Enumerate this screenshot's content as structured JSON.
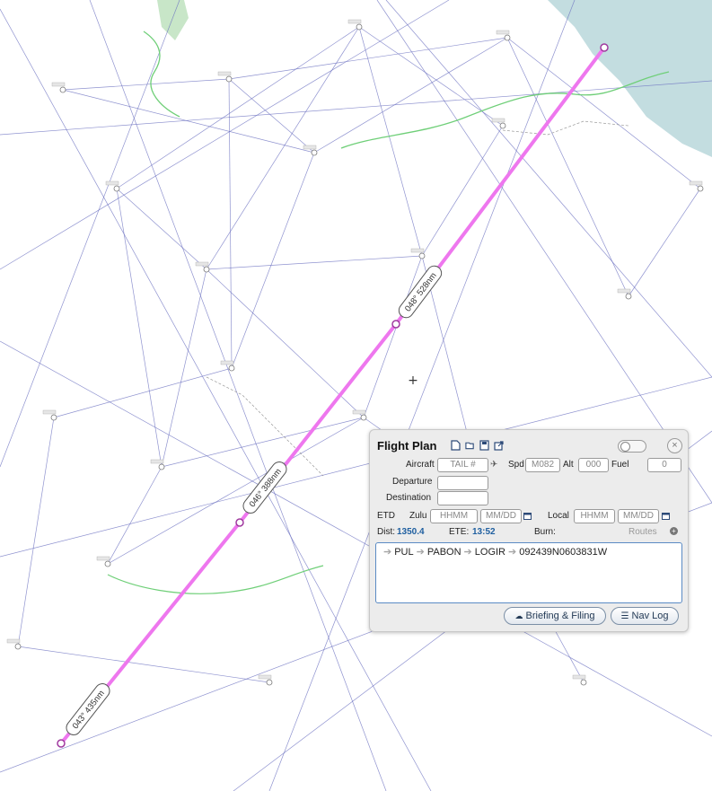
{
  "map": {
    "route_labels": [
      "043° 435nm",
      "046° 388nm",
      "048° 528nm"
    ],
    "route_color": "#ee77ee",
    "airway_color": "#6a6fc0",
    "water_color": "#c3dde0",
    "border_color": "#6fcf78"
  },
  "flight_plan": {
    "title": "Flight Plan",
    "aircraft_label": "Aircraft",
    "aircraft_placeholder": "TAIL #",
    "speed_label": "Spd",
    "speed_placeholder": "M082",
    "alt_label": "Alt",
    "alt_placeholder": "000",
    "fuel_label": "Fuel",
    "fuel_placeholder": "0",
    "departure_label": "Departure",
    "departure_value": "",
    "destination_label": "Destination",
    "destination_value": "",
    "etd_label": "ETD",
    "zulu_label": "Zulu",
    "zulu_time_placeholder": "HHMM",
    "zulu_date_placeholder": "MM/DD",
    "local_label": "Local",
    "local_time_placeholder": "HHMM",
    "local_date_placeholder": "MM/DD",
    "dist_label": "Dist:",
    "dist_value": "1350.4",
    "ete_label": "ETE:",
    "ete_value": "13:52",
    "burn_label": "Burn:",
    "routes_label": "Routes",
    "route_waypoints": [
      "PUL",
      "PABON",
      "LOGIR",
      "092439N0603831W"
    ],
    "briefing_button": "Briefing & Filing",
    "navlog_button": "Nav Log"
  }
}
